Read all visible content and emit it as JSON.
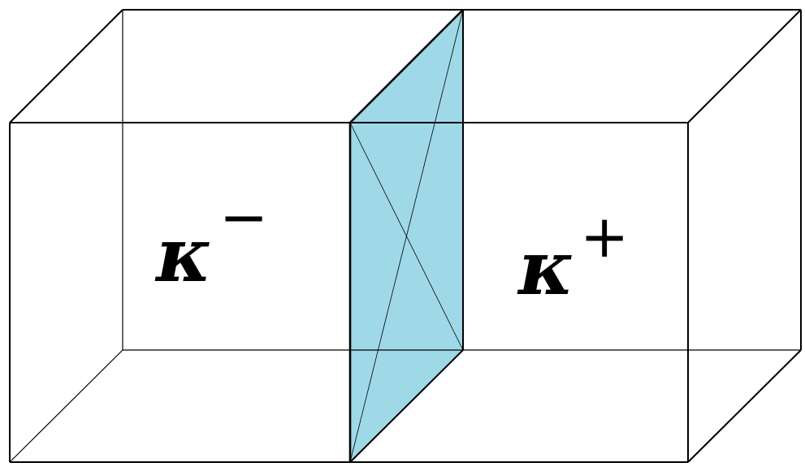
{
  "diagram": {
    "labels": {
      "left": {
        "symbol": "κ",
        "superscript": "−"
      },
      "right": {
        "symbol": "κ",
        "superscript": "+"
      }
    },
    "colors": {
      "interface_fill": "#9fd9e8",
      "lines": "#000000",
      "background": "#ffffff"
    }
  }
}
